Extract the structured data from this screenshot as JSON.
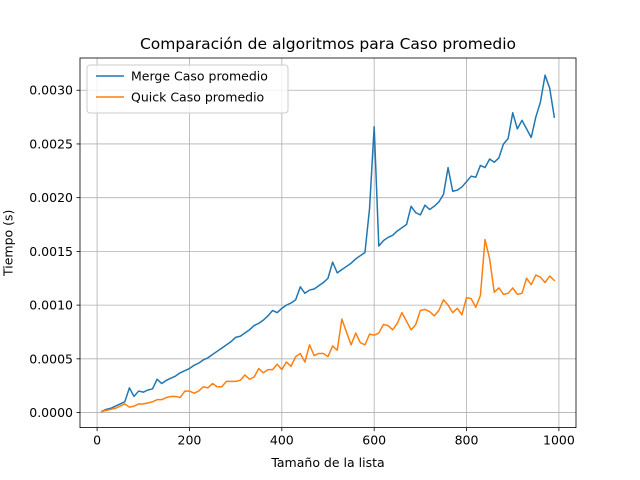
{
  "chart_data": {
    "type": "line",
    "title": "Comparación de algoritmos para Caso promedio",
    "xlabel": "Tamaño de la lista",
    "ylabel": "Tiempo (s)",
    "xlim": [
      -37,
      1037
    ],
    "ylim": [
      -0.00014,
      0.0033
    ],
    "xticks": [
      0,
      200,
      400,
      600,
      800,
      1000
    ],
    "xtick_labels": [
      "0",
      "200",
      "400",
      "600",
      "800",
      "1000"
    ],
    "yticks": [
      0.0,
      0.0005,
      0.001,
      0.0015,
      0.002,
      0.0025,
      0.003
    ],
    "ytick_labels": [
      "0.0000",
      "0.0005",
      "0.0010",
      "0.0015",
      "0.0020",
      "0.0025",
      "0.0030"
    ],
    "grid": true,
    "legend_position": "top-left",
    "x": [
      10,
      20,
      30,
      40,
      50,
      60,
      70,
      80,
      90,
      100,
      110,
      120,
      130,
      140,
      150,
      160,
      170,
      180,
      190,
      200,
      210,
      220,
      230,
      240,
      250,
      260,
      270,
      280,
      290,
      300,
      310,
      320,
      330,
      340,
      350,
      360,
      370,
      380,
      390,
      400,
      410,
      420,
      430,
      440,
      450,
      460,
      470,
      480,
      490,
      500,
      510,
      520,
      530,
      540,
      550,
      560,
      570,
      580,
      590,
      600,
      610,
      620,
      630,
      640,
      650,
      660,
      670,
      680,
      690,
      700,
      710,
      720,
      730,
      740,
      750,
      760,
      770,
      780,
      790,
      800,
      810,
      820,
      830,
      840,
      850,
      860,
      870,
      880,
      890,
      900,
      910,
      920,
      930,
      940,
      950,
      960,
      970,
      980,
      990
    ],
    "series": [
      {
        "name": "Merge Caso promedio",
        "color": "#1f77b4",
        "values": [
          1e-05,
          3e-05,
          4e-05,
          6e-05,
          8e-05,
          0.0001,
          0.00023,
          0.00015,
          0.0002,
          0.00019,
          0.00021,
          0.00022,
          0.00031,
          0.00027,
          0.0003,
          0.00032,
          0.00034,
          0.00037,
          0.00039,
          0.00041,
          0.00044,
          0.00046,
          0.00049,
          0.00051,
          0.00054,
          0.00057,
          0.0006,
          0.00063,
          0.00066,
          0.0007,
          0.00071,
          0.00074,
          0.00077,
          0.00081,
          0.00083,
          0.00086,
          0.0009,
          0.00095,
          0.00093,
          0.00097,
          0.001,
          0.00102,
          0.00105,
          0.00117,
          0.00111,
          0.00114,
          0.00115,
          0.00118,
          0.00121,
          0.00125,
          0.0014,
          0.0013,
          0.00133,
          0.00136,
          0.00139,
          0.00143,
          0.00146,
          0.00149,
          0.0019,
          0.00266,
          0.00155,
          0.0016,
          0.00163,
          0.00165,
          0.00169,
          0.00172,
          0.00175,
          0.00192,
          0.00186,
          0.00184,
          0.00193,
          0.00189,
          0.00192,
          0.00196,
          0.00203,
          0.00228,
          0.00206,
          0.00207,
          0.0021,
          0.00215,
          0.0022,
          0.00219,
          0.0023,
          0.00228,
          0.00236,
          0.00233,
          0.00237,
          0.0025,
          0.00255,
          0.00279,
          0.00264,
          0.00272,
          0.00264,
          0.00256,
          0.00275,
          0.00289,
          0.00314,
          0.00302,
          0.00275
        ]
      },
      {
        "name": "Quick Caso promedio",
        "color": "#ff7f0e",
        "values": [
          1e-05,
          2e-05,
          3e-05,
          4e-05,
          6e-05,
          8e-05,
          5e-05,
          6e-05,
          8e-05,
          8e-05,
          9e-05,
          0.0001,
          0.00012,
          0.00012,
          0.00014,
          0.00015,
          0.00015,
          0.00014,
          0.0002,
          0.0002,
          0.00018,
          0.0002,
          0.00024,
          0.00023,
          0.00027,
          0.00024,
          0.00024,
          0.00029,
          0.00029,
          0.00029,
          0.0003,
          0.00035,
          0.00031,
          0.00033,
          0.00041,
          0.00037,
          0.0004,
          0.0004,
          0.00045,
          0.0004,
          0.00047,
          0.00043,
          0.00052,
          0.00055,
          0.00047,
          0.00063,
          0.00053,
          0.00055,
          0.00055,
          0.00052,
          0.00062,
          0.00058,
          0.00087,
          0.00075,
          0.00063,
          0.00074,
          0.00065,
          0.00063,
          0.00073,
          0.00072,
          0.00074,
          0.00082,
          0.00081,
          0.00077,
          0.00083,
          0.00093,
          0.00085,
          0.00077,
          0.00082,
          0.00095,
          0.00096,
          0.00094,
          0.0009,
          0.00095,
          0.00105,
          0.001,
          0.00093,
          0.00097,
          0.00091,
          0.00107,
          0.00106,
          0.00098,
          0.00109,
          0.00161,
          0.00143,
          0.00112,
          0.00116,
          0.0011,
          0.00111,
          0.00116,
          0.0011,
          0.00111,
          0.00125,
          0.00119,
          0.00128,
          0.00126,
          0.00121,
          0.00127,
          0.00123
        ]
      }
    ]
  }
}
